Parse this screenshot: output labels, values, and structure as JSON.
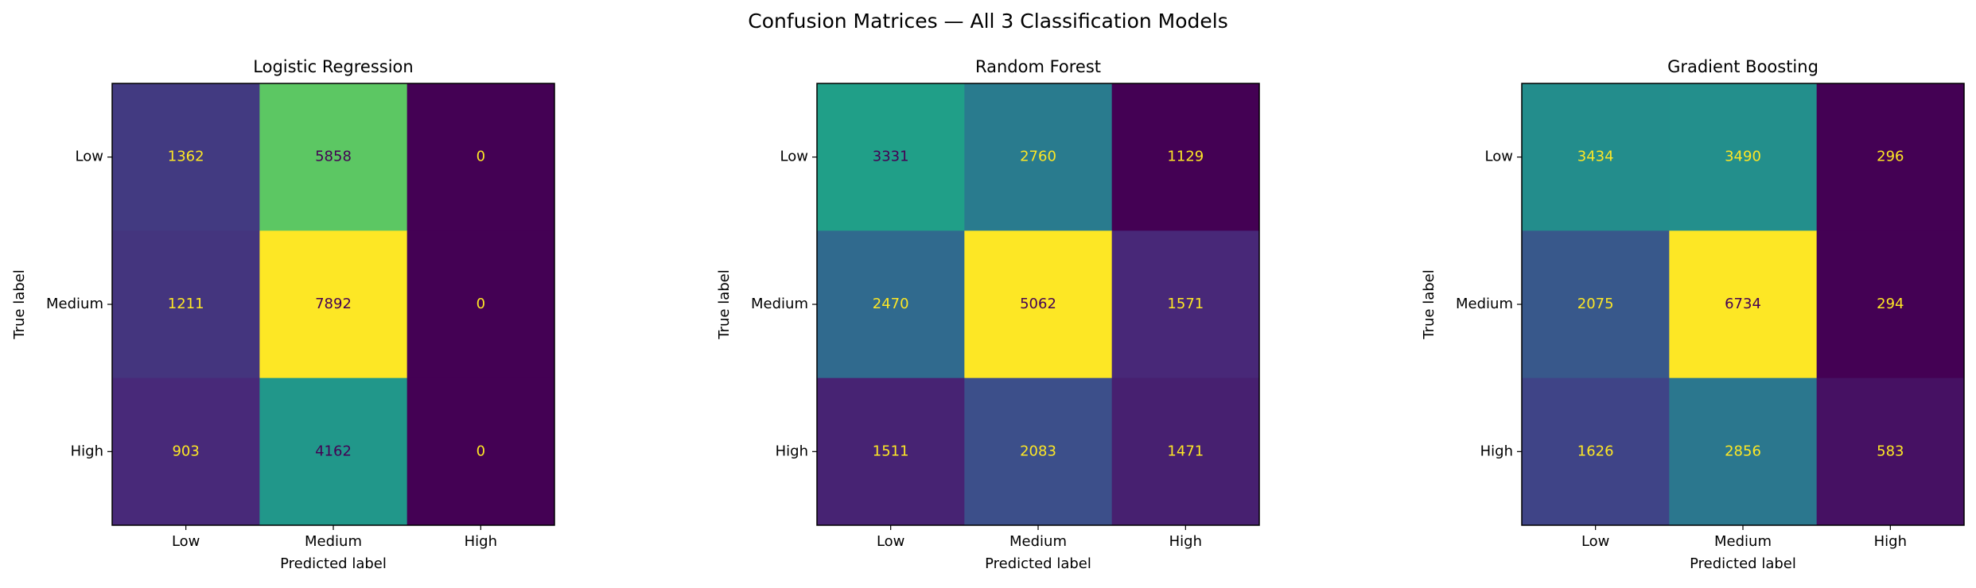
{
  "title": "Confusion Matrices — All 3 Classification Models",
  "chart_data": [
    {
      "type": "heatmap",
      "title": "Logistic Regression",
      "x_label": "Predicted label",
      "y_label": "True label",
      "x_categories": [
        "Low",
        "Medium",
        "High"
      ],
      "y_categories": [
        "Low",
        "Medium",
        "High"
      ],
      "values": [
        [
          1362,
          5858,
          0
        ],
        [
          1211,
          7892,
          0
        ],
        [
          903,
          4162,
          0
        ]
      ],
      "colormap": [
        "#440154",
        "#482878",
        "#3e4989",
        "#31688e",
        "#26828e",
        "#1f9e89",
        "#35b779",
        "#6ece58",
        "#b5de2b",
        "#fde725"
      ]
    },
    {
      "type": "heatmap",
      "title": "Random Forest",
      "x_label": "Predicted label",
      "y_label": "True label",
      "x_categories": [
        "Low",
        "Medium",
        "High"
      ],
      "y_categories": [
        "Low",
        "Medium",
        "High"
      ],
      "values": [
        [
          3331,
          2760,
          1129
        ],
        [
          2470,
          5062,
          1571
        ],
        [
          1511,
          2083,
          1471
        ]
      ],
      "colormap": [
        "#440154",
        "#482878",
        "#3e4989",
        "#31688e",
        "#26828e",
        "#1f9e89",
        "#35b779",
        "#6ece58",
        "#b5de2b",
        "#fde725"
      ]
    },
    {
      "type": "heatmap",
      "title": "Gradient Boosting",
      "x_label": "Predicted label",
      "y_label": "True label",
      "x_categories": [
        "Low",
        "Medium",
        "High"
      ],
      "y_categories": [
        "Low",
        "Medium",
        "High"
      ],
      "values": [
        [
          3434,
          3490,
          296
        ],
        [
          2075,
          6734,
          294
        ],
        [
          1626,
          2856,
          583
        ]
      ],
      "colormap": [
        "#440154",
        "#482878",
        "#3e4989",
        "#31688e",
        "#26828e",
        "#1f9e89",
        "#35b779",
        "#6ece58",
        "#b5de2b",
        "#fde725"
      ]
    }
  ]
}
